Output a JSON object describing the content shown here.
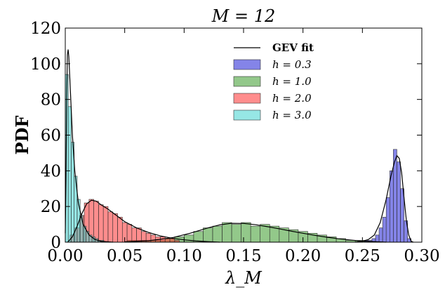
{
  "chart_data": {
    "type": "histogram",
    "title": "M = 12",
    "xlabel": "λ_M",
    "ylabel": "PDF",
    "xlim": [
      0.0,
      0.3
    ],
    "ylim": [
      0,
      120
    ],
    "xticks": [
      "0.00",
      "0.05",
      "0.10",
      "0.15",
      "0.20",
      "0.25",
      "0.30"
    ],
    "yticks": [
      "0",
      "20",
      "40",
      "60",
      "80",
      "100",
      "120"
    ],
    "grid": false,
    "legend_position": "upper-right",
    "fit_label": "GEV fit",
    "series": [
      {
        "name": "h = 0.3",
        "color": "#1f1fd6",
        "bin_width": 0.003,
        "bins": [
          {
            "x": 0.252,
            "y": 1
          },
          {
            "x": 0.255,
            "y": 1
          },
          {
            "x": 0.258,
            "y": 2
          },
          {
            "x": 0.261,
            "y": 4
          },
          {
            "x": 0.264,
            "y": 8
          },
          {
            "x": 0.267,
            "y": 14
          },
          {
            "x": 0.27,
            "y": 25
          },
          {
            "x": 0.273,
            "y": 40
          },
          {
            "x": 0.276,
            "y": 52
          },
          {
            "x": 0.279,
            "y": 45
          },
          {
            "x": 0.282,
            "y": 30
          },
          {
            "x": 0.285,
            "y": 12
          },
          {
            "x": 0.288,
            "y": 2
          }
        ],
        "fit": [
          [
            0.244,
            0
          ],
          [
            0.25,
            0.5
          ],
          [
            0.255,
            1.5
          ],
          [
            0.26,
            4
          ],
          [
            0.265,
            11
          ],
          [
            0.27,
            24
          ],
          [
            0.274,
            37
          ],
          [
            0.277,
            45
          ],
          [
            0.279,
            48.5
          ],
          [
            0.281,
            47
          ],
          [
            0.283,
            39
          ],
          [
            0.285,
            25
          ],
          [
            0.287,
            12
          ],
          [
            0.289,
            4
          ],
          [
            0.291,
            0.5
          ],
          [
            0.293,
            0
          ]
        ]
      },
      {
        "name": "h = 1.0",
        "color": "#3a9a2a",
        "bin_width": 0.008,
        "bins": [
          {
            "x": 0.052,
            "y": 1
          },
          {
            "x": 0.06,
            "y": 1
          },
          {
            "x": 0.068,
            "y": 1
          },
          {
            "x": 0.076,
            "y": 1
          },
          {
            "x": 0.084,
            "y": 2
          },
          {
            "x": 0.092,
            "y": 3
          },
          {
            "x": 0.1,
            "y": 4
          },
          {
            "x": 0.108,
            "y": 6
          },
          {
            "x": 0.116,
            "y": 8
          },
          {
            "x": 0.124,
            "y": 9
          },
          {
            "x": 0.132,
            "y": 11
          },
          {
            "x": 0.14,
            "y": 10
          },
          {
            "x": 0.148,
            "y": 11
          },
          {
            "x": 0.156,
            "y": 9
          },
          {
            "x": 0.164,
            "y": 10
          },
          {
            "x": 0.172,
            "y": 9
          },
          {
            "x": 0.18,
            "y": 8
          },
          {
            "x": 0.188,
            "y": 7
          },
          {
            "x": 0.196,
            "y": 6
          },
          {
            "x": 0.204,
            "y": 5
          },
          {
            "x": 0.212,
            "y": 4
          },
          {
            "x": 0.22,
            "y": 3
          },
          {
            "x": 0.228,
            "y": 2
          },
          {
            "x": 0.236,
            "y": 1
          },
          {
            "x": 0.244,
            "y": 1
          }
        ],
        "fit": [
          [
            0.05,
            0.2
          ],
          [
            0.07,
            0.8
          ],
          [
            0.09,
            2.5
          ],
          [
            0.105,
            5
          ],
          [
            0.12,
            8
          ],
          [
            0.13,
            9.7
          ],
          [
            0.14,
            10.6
          ],
          [
            0.15,
            10.5
          ],
          [
            0.16,
            9.8
          ],
          [
            0.17,
            8.7
          ],
          [
            0.18,
            7.5
          ],
          [
            0.19,
            6.2
          ],
          [
            0.2,
            5
          ],
          [
            0.21,
            3.8
          ],
          [
            0.22,
            2.8
          ],
          [
            0.23,
            1.9
          ],
          [
            0.24,
            1.2
          ],
          [
            0.25,
            0.6
          ],
          [
            0.26,
            0.3
          ],
          [
            0.27,
            0
          ]
        ]
      },
      {
        "name": "h = 2.0",
        "color": "#ff3030",
        "bin_width": 0.004,
        "bins": [
          {
            "x": 0.004,
            "y": 4
          },
          {
            "x": 0.008,
            "y": 8
          },
          {
            "x": 0.012,
            "y": 15
          },
          {
            "x": 0.016,
            "y": 22
          },
          {
            "x": 0.02,
            "y": 24
          },
          {
            "x": 0.024,
            "y": 23
          },
          {
            "x": 0.028,
            "y": 21
          },
          {
            "x": 0.032,
            "y": 20
          },
          {
            "x": 0.036,
            "y": 17
          },
          {
            "x": 0.04,
            "y": 16
          },
          {
            "x": 0.044,
            "y": 14
          },
          {
            "x": 0.048,
            "y": 11
          },
          {
            "x": 0.052,
            "y": 10
          },
          {
            "x": 0.056,
            "y": 8
          },
          {
            "x": 0.06,
            "y": 8
          },
          {
            "x": 0.064,
            "y": 6
          },
          {
            "x": 0.068,
            "y": 5
          },
          {
            "x": 0.072,
            "y": 4
          },
          {
            "x": 0.076,
            "y": 3
          },
          {
            "x": 0.08,
            "y": 3
          },
          {
            "x": 0.084,
            "y": 2
          },
          {
            "x": 0.088,
            "y": 2
          },
          {
            "x": 0.092,
            "y": 1
          }
        ],
        "fit": [
          [
            0.002,
            0
          ],
          [
            0.006,
            3
          ],
          [
            0.01,
            9
          ],
          [
            0.014,
            16
          ],
          [
            0.018,
            21.5
          ],
          [
            0.022,
            23.5
          ],
          [
            0.026,
            23
          ],
          [
            0.03,
            21
          ],
          [
            0.036,
            18.5
          ],
          [
            0.042,
            15.5
          ],
          [
            0.05,
            11.5
          ],
          [
            0.06,
            8
          ],
          [
            0.07,
            5.5
          ],
          [
            0.08,
            3.5
          ],
          [
            0.09,
            2.2
          ],
          [
            0.1,
            1.3
          ],
          [
            0.11,
            0.7
          ],
          [
            0.12,
            0.3
          ],
          [
            0.13,
            0
          ]
        ]
      },
      {
        "name": "h = 3.0",
        "color": "#40d4d0",
        "bin_width": 0.0025,
        "bins": [
          {
            "x": 0.0,
            "y": 94
          },
          {
            "x": 0.0025,
            "y": 76
          },
          {
            "x": 0.005,
            "y": 56
          },
          {
            "x": 0.0075,
            "y": 37
          },
          {
            "x": 0.01,
            "y": 24
          },
          {
            "x": 0.0125,
            "y": 15
          },
          {
            "x": 0.015,
            "y": 9
          },
          {
            "x": 0.0175,
            "y": 6
          },
          {
            "x": 0.02,
            "y": 4
          },
          {
            "x": 0.0225,
            "y": 3
          },
          {
            "x": 0.025,
            "y": 2
          },
          {
            "x": 0.0275,
            "y": 1
          },
          {
            "x": 0.03,
            "y": 1
          }
        ],
        "fit": [
          [
            0.0,
            5
          ],
          [
            0.0006,
            35
          ],
          [
            0.0012,
            80
          ],
          [
            0.0018,
            105
          ],
          [
            0.0024,
            108
          ],
          [
            0.003,
            104
          ],
          [
            0.0045,
            82
          ],
          [
            0.006,
            60
          ],
          [
            0.008,
            40
          ],
          [
            0.011,
            22
          ],
          [
            0.015,
            10
          ],
          [
            0.02,
            4
          ],
          [
            0.025,
            1.5
          ],
          [
            0.03,
            0.5
          ],
          [
            0.04,
            0
          ]
        ]
      }
    ]
  }
}
